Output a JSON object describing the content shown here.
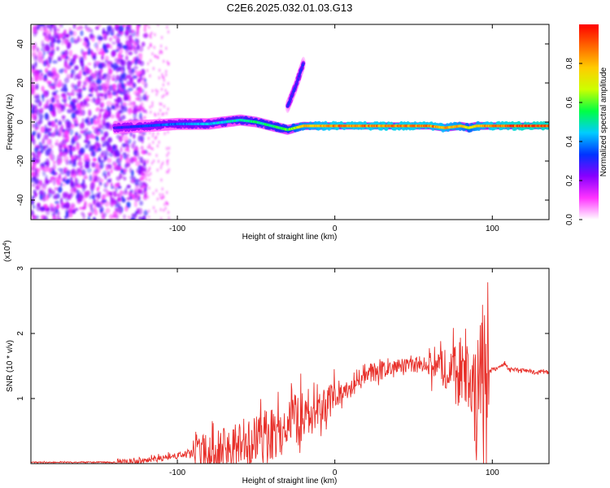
{
  "title": "C2E6.2025.032.01.03.G13",
  "chart_data": [
    {
      "type": "heatmap",
      "xlabel": "Height of straight line (km)",
      "ylabel": "Frequency (Hz)",
      "xlim": [
        -193,
        136
      ],
      "ylim": [
        -50,
        50
      ],
      "x_ticks": [
        -100,
        0,
        100
      ],
      "y_ticks": [
        -40,
        -20,
        0,
        20,
        40
      ],
      "colorbar": {
        "label": "Normalized spectral amplitude",
        "range": [
          0,
          1
        ],
        "ticks": [
          "0.0",
          "0.2",
          "0.4",
          "0.6",
          "0.8"
        ],
        "colors": [
          "#ffffff",
          "#ff33ff",
          "#8800ff",
          "#0033ff",
          "#00ccff",
          "#00ff44",
          "#ccff00",
          "#ffcc00",
          "#ff6600",
          "#ff0000"
        ]
      },
      "traces": [
        {
          "x": [
            -140,
            -120,
            -100,
            -80,
            -60,
            -50,
            -40,
            -30,
            -25,
            -20,
            -10,
            0,
            20,
            40,
            60,
            70,
            80,
            85,
            90,
            100,
            120,
            136
          ],
          "y": [
            -3,
            -2,
            -1,
            -1,
            1,
            0,
            -2,
            -4,
            -3,
            -2,
            -2,
            -2,
            -2,
            -2,
            -2,
            -3,
            -2,
            -3,
            -2,
            -2,
            -2,
            -2
          ],
          "amplitude": [
            0.3,
            0.35,
            0.4,
            0.45,
            0.5,
            0.55,
            0.55,
            0.6,
            0.7,
            0.8,
            0.85,
            0.9,
            0.9,
            0.9,
            0.9,
            0.85,
            0.8,
            0.7,
            0.8,
            0.9,
            0.95,
            0.95
          ]
        },
        {
          "x": [
            -30,
            -25,
            -20
          ],
          "y": [
            8,
            18,
            30
          ],
          "amplitude": [
            0.3,
            0.3,
            0.3
          ]
        }
      ],
      "noise_region": {
        "x": [
          -193,
          -120
        ],
        "y": [
          -50,
          50
        ],
        "amplitude": 0.3
      }
    },
    {
      "type": "line",
      "xlabel": "Height of straight line (km)",
      "ylabel": "SNR (10 * v/v)",
      "y_multiplier": "(x10",
      "y_multiplier_exp": "4",
      "y_multiplier_close": ")",
      "xlim": [
        -193,
        136
      ],
      "ylim": [
        0,
        3
      ],
      "x_ticks": [
        -100,
        0,
        100
      ],
      "y_ticks": [
        1,
        2,
        3
      ],
      "color": "#e8302a",
      "series": [
        {
          "x": [
            -193,
            -140,
            -120,
            -100,
            -80,
            -60,
            -40,
            -30,
            -20,
            -10,
            0,
            10,
            20,
            30,
            40,
            50,
            60,
            70,
            75,
            80,
            85,
            88,
            90,
            93,
            95,
            96,
            97,
            98,
            100,
            105,
            108,
            110,
            115,
            120,
            125,
            130,
            136
          ],
          "y": [
            0.02,
            0.02,
            0.04,
            0.12,
            0.2,
            0.3,
            0.45,
            0.6,
            0.75,
            0.8,
            1.0,
            1.15,
            1.35,
            1.45,
            1.5,
            1.5,
            1.48,
            1.5,
            1.45,
            1.4,
            1.3,
            1.1,
            0.9,
            1.5,
            1.0,
            1.2,
            1.4,
            1.42,
            1.45,
            1.48,
            1.55,
            1.45,
            1.44,
            1.43,
            1.42,
            1.41,
            1.4
          ]
        }
      ]
    }
  ]
}
